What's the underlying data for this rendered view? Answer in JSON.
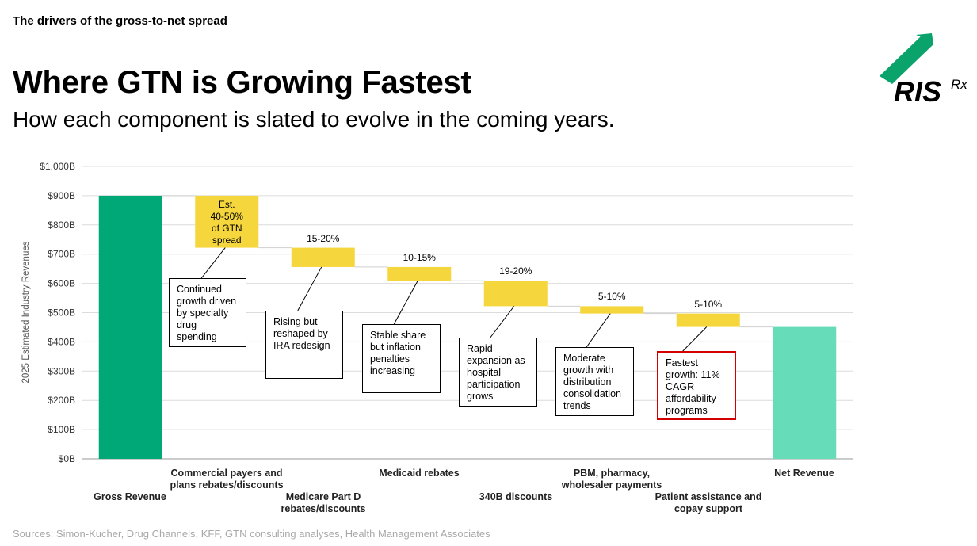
{
  "header": {
    "kicker": "The drivers of the gross-to-net spread",
    "title": "Where GTN is Growing Fastest",
    "subtitle": "How each component is slated to evolve in the coming years."
  },
  "logo": {
    "wordmark": "RIS",
    "suffix": "Rx",
    "color": "#0aa36b"
  },
  "footer": {
    "source": "Sources: Simon-Kucher, Drug Channels, KFF, GTN consulting analyses, Health Management Associates"
  },
  "chart_data": {
    "type": "bar",
    "subtype": "waterfall",
    "ylabel": "2025 Estimated Industry Revenues",
    "ylim": [
      0,
      1000
    ],
    "yticks": [
      "$0B",
      "$100B",
      "$200B",
      "$300B",
      "$400B",
      "$500B",
      "$600B",
      "$700B",
      "$800B",
      "$900B",
      "$1,000B"
    ],
    "grid": true,
    "colors": {
      "gross": "#00a878",
      "net": "#66ddb8",
      "component": "#f5d63d"
    },
    "categories": [
      "Gross Revenue",
      "Commercial payers and plans rebates/discounts",
      "Medicare Part D rebates/discounts",
      "Medicaid rebates",
      "340B discounts",
      "PBM, pharmacy, wholesaler payments",
      "Patient assistance and copay support",
      "Net Revenue"
    ],
    "bars": [
      {
        "category": "Gross Revenue",
        "kind": "total",
        "start": 0,
        "end": 900,
        "label": "",
        "note": "",
        "highlight": false
      },
      {
        "category": "Commercial payers and plans rebates/discounts",
        "kind": "decrease",
        "start": 900,
        "end": 722,
        "label": "Est.\n40-50%\nof GTN\nspread",
        "note": "Continued growth driven by specialty drug spending",
        "highlight": false
      },
      {
        "category": "Medicare Part D rebates/discounts",
        "kind": "decrease",
        "start": 722,
        "end": 656,
        "label": "15-20%",
        "note": "Rising but reshaped by IRA redesign",
        "highlight": false
      },
      {
        "category": "Medicaid rebates",
        "kind": "decrease",
        "start": 656,
        "end": 609,
        "label": "10-15%",
        "note": "Stable share but inflation penalties increasing",
        "highlight": false
      },
      {
        "category": "340B discounts",
        "kind": "decrease",
        "start": 609,
        "end": 522,
        "label": "19-20%",
        "note": "Rapid expansion as hospital participation grows",
        "highlight": false
      },
      {
        "category": "PBM, pharmacy, wholesaler payments",
        "kind": "decrease",
        "start": 522,
        "end": 497,
        "label": "5-10%",
        "note": "Moderate growth with distribution consolidation trends",
        "highlight": false
      },
      {
        "category": "Patient assistance and copay support",
        "kind": "decrease",
        "start": 497,
        "end": 451,
        "label": "5-10%",
        "note": "Fastest growth: 11% CAGR affordability programs",
        "highlight": true
      },
      {
        "category": "Net Revenue",
        "kind": "total",
        "start": 0,
        "end": 451,
        "label": "",
        "note": "",
        "highlight": false
      }
    ]
  }
}
